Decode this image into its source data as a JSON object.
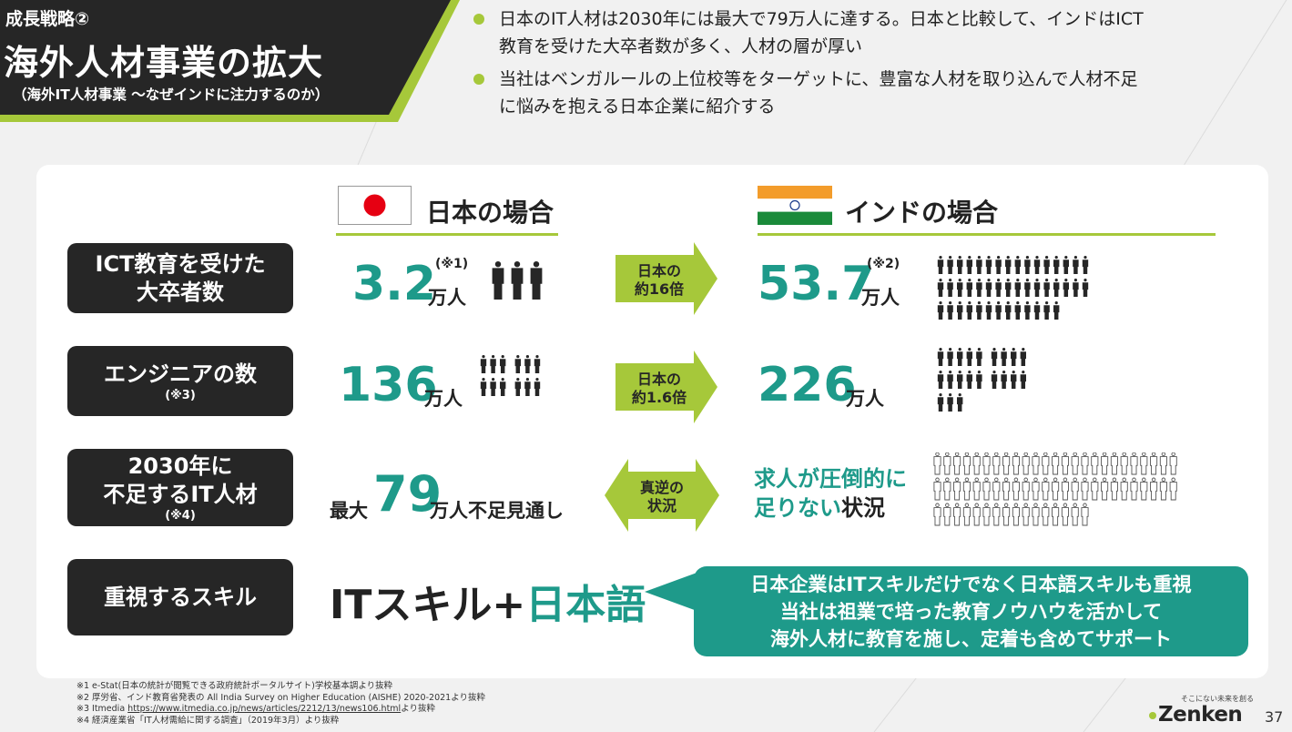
{
  "header": {
    "small_title": "成長戦略②",
    "main_title": "海外人材事業の拡大",
    "subtitle": "（海外IT人材事業 ～なぜインドに注力するのか）"
  },
  "bullets": [
    {
      "line1": "日本のIT人材は2030年には最大で79万人に達する。日本と比較して、インドはICT",
      "line2": "教育を受けた大卒者数が多く、人材の層が厚い"
    },
    {
      "line1": "当社はベンガルールの上位校等をターゲットに、豊富な人材を取り込んで人材不足",
      "line2": "に悩みを抱える日本企業に紹介する"
    }
  ],
  "columns": {
    "japan": "日本の場合",
    "india": "インドの場合"
  },
  "rows": {
    "ict": {
      "label_line1": "ICT教育を受けた",
      "label_line2": "大卒者数",
      "japan_value": "3.2",
      "japan_unit": "万人",
      "japan_note": "(※1)",
      "arrow_line1": "日本の",
      "arrow_line2": "約16倍",
      "india_value": "53.7",
      "india_unit": "万人",
      "india_note": "(※2)"
    },
    "engineers": {
      "label": "エンジニアの数",
      "label_note": "(※3)",
      "japan_value": "136",
      "japan_unit": "万人",
      "arrow_line1": "日本の",
      "arrow_line2": "約1.6倍",
      "india_value": "226",
      "india_unit": "万人"
    },
    "shortage": {
      "label_line1": "2030年に",
      "label_line2": "不足するIT人材",
      "label_note": "(※4)",
      "japan_prefix": "最大",
      "japan_value": "79",
      "japan_suffix": "万人不足見通し",
      "arrow_line1": "真逆の",
      "arrow_line2": "状況",
      "india_teal1": "求人が圧倒的に",
      "india_teal2": "足りない",
      "india_dark2": "状況"
    },
    "skills": {
      "label": "重視するスキル",
      "skill_dark": "ITスキル+",
      "skill_teal": "日本語",
      "callout_line1": "日本企業はITスキルだけでなく日本語スキルも重視",
      "callout_line2": "当社は祖業で培った教育ノウハウを活かして",
      "callout_line3": "海外人材に教育を施し、定着も含めてサポート"
    }
  },
  "footnotes": {
    "n1": "※1 e-Stat(日本の統計が閲覧できる政府統計ポータルサイト)学校基本調より抜粋",
    "n2": "※2 厚労省、インド教育省発表の All India Survey on Higher Education (AISHE) 2020-2021より抜粋",
    "n3_prefix": "※3 Itmedia ",
    "n3_link": "https://www.itmedia.co.jp/news/articles/2212/13/news106.html",
    "n3_suffix": "より抜粋",
    "n4": "※4 経済産業省「IT人材需給に関する調査」（2019年3月）より抜粋"
  },
  "brand": {
    "tagline": "そこにない未来を創る",
    "name": "Zenken",
    "page": "37"
  },
  "colors": {
    "teal": "#1e9a8a",
    "lime": "#a6c83a",
    "dark": "#262626"
  },
  "icons": [
    "person-icon",
    "person-outline-icon",
    "japan-flag-icon",
    "india-flag-icon",
    "arrow-right-icon",
    "double-arrow-icon"
  ]
}
